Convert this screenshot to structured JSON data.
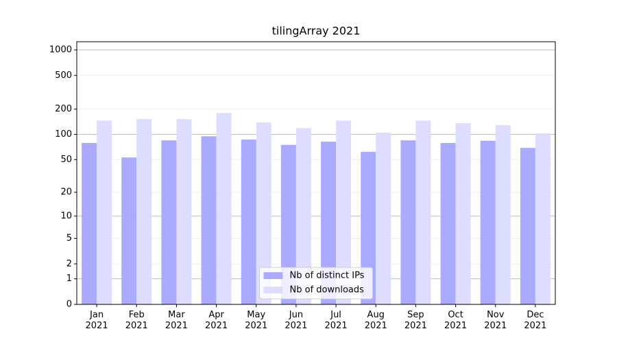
{
  "chart_data": {
    "type": "bar",
    "title": "tilingArray 2021",
    "categories": [
      "Jan\n2021",
      "Feb\n2021",
      "Mar\n2021",
      "Apr\n2021",
      "May\n2021",
      "Jun\n2021",
      "Jul\n2021",
      "Aug\n2021",
      "Sep\n2021",
      "Oct\n2021",
      "Nov\n2021",
      "Dec\n2021"
    ],
    "series": [
      {
        "name": "Nb of distinct IPs",
        "color": "#aaaaff",
        "values": [
          79,
          53,
          85,
          95,
          87,
          75,
          82,
          62,
          85,
          79,
          84,
          69
        ]
      },
      {
        "name": "Nb of downloads",
        "color": "#ddddff",
        "values": [
          146,
          152,
          152,
          180,
          139,
          119,
          146,
          105,
          146,
          136,
          129,
          103
        ]
      }
    ],
    "yscale": "log1p",
    "ylim": [
      0,
      1250
    ],
    "yticks": [
      0,
      1,
      2,
      5,
      10,
      20,
      50,
      100,
      200,
      500,
      1000
    ],
    "grid": true,
    "legend": "lower center"
  }
}
